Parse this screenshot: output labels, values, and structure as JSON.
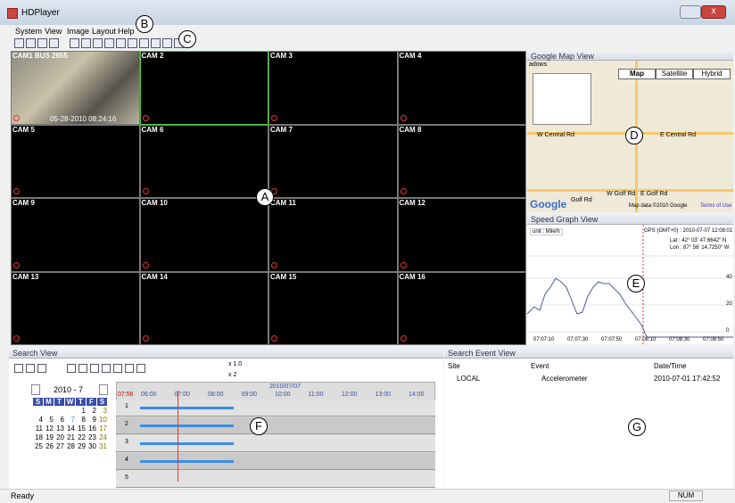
{
  "window": {
    "title": "HDPlayer"
  },
  "menu": [
    "System",
    "View",
    "Image",
    "Layout",
    "Help"
  ],
  "annotations": [
    "A",
    "B",
    "C",
    "D",
    "E",
    "F",
    "G"
  ],
  "cameras": {
    "labels": [
      "CAM1 BUS 2655",
      "CAM 2",
      "CAM 3",
      "CAM 4",
      "CAM 5",
      "CAM 6",
      "CAM 7",
      "CAM 8",
      "CAM 9",
      "CAM 10",
      "CAM 11",
      "CAM 12",
      "CAM 13",
      "CAM 14",
      "CAM 15",
      "CAM 16"
    ],
    "timestamp": "05-28-2010 08:24:16"
  },
  "map_view": {
    "title": "Google Map View",
    "buttons": [
      "Map",
      "Satellite",
      "Hybrid"
    ],
    "labels": [
      "adows",
      "W Central Rd",
      "E Central Rd",
      "W Golf Rd",
      "E Golf Rd",
      "Golf Rd"
    ],
    "logo": "Google",
    "credit": "Map data ©2010 Google",
    "terms": "Terms of Use"
  },
  "speed_view": {
    "title": "Speed Graph View",
    "unit": "unit : Mile/h",
    "gps": "GPS (GMT+0) : 2010-07-07 12:08:01",
    "lat": "Lat : 42° 03' 47.6642\" N",
    "lon": "Lon : 87° 56' 14.7250\" W",
    "y_labels": [
      "40",
      "20",
      "0"
    ],
    "x_labels": [
      "07:07:10",
      "07:07:30",
      "07:07:50",
      "07:08:10",
      "07:08:30",
      "07:08:50"
    ]
  },
  "search_view": {
    "title": "Search View",
    "speed_labels": [
      "x 1.0",
      "x 2"
    ],
    "calendar": {
      "month": "2010 - 7",
      "weekdays": [
        "S",
        "M",
        "T",
        "W",
        "T",
        "F",
        "S"
      ],
      "weeks": [
        [
          null,
          null,
          null,
          null,
          1,
          2,
          3
        ],
        [
          4,
          5,
          6,
          7,
          8,
          9,
          10
        ],
        [
          11,
          12,
          13,
          14,
          15,
          16,
          17
        ],
        [
          18,
          19,
          20,
          21,
          22,
          23,
          24
        ],
        [
          25,
          26,
          27,
          28,
          29,
          30,
          31
        ]
      ]
    },
    "timeline": {
      "cursor": "07:56",
      "date": "2010/07/07",
      "hours": [
        "06:00",
        "07:00",
        "08:00",
        "09:00",
        "10:00",
        "11:00",
        "12:00",
        "13:00",
        "14:00"
      ],
      "rows": [
        "1",
        "2",
        "3",
        "4",
        "5"
      ]
    }
  },
  "event_view": {
    "title": "Search Event View",
    "columns": [
      "Site",
      "Event",
      "Date/Time"
    ],
    "rows": [
      [
        "LOCAL",
        "Accelerometer",
        "2010-07-01 17:42:52"
      ]
    ]
  },
  "status": {
    "text": "Ready",
    "num": "NUM"
  }
}
